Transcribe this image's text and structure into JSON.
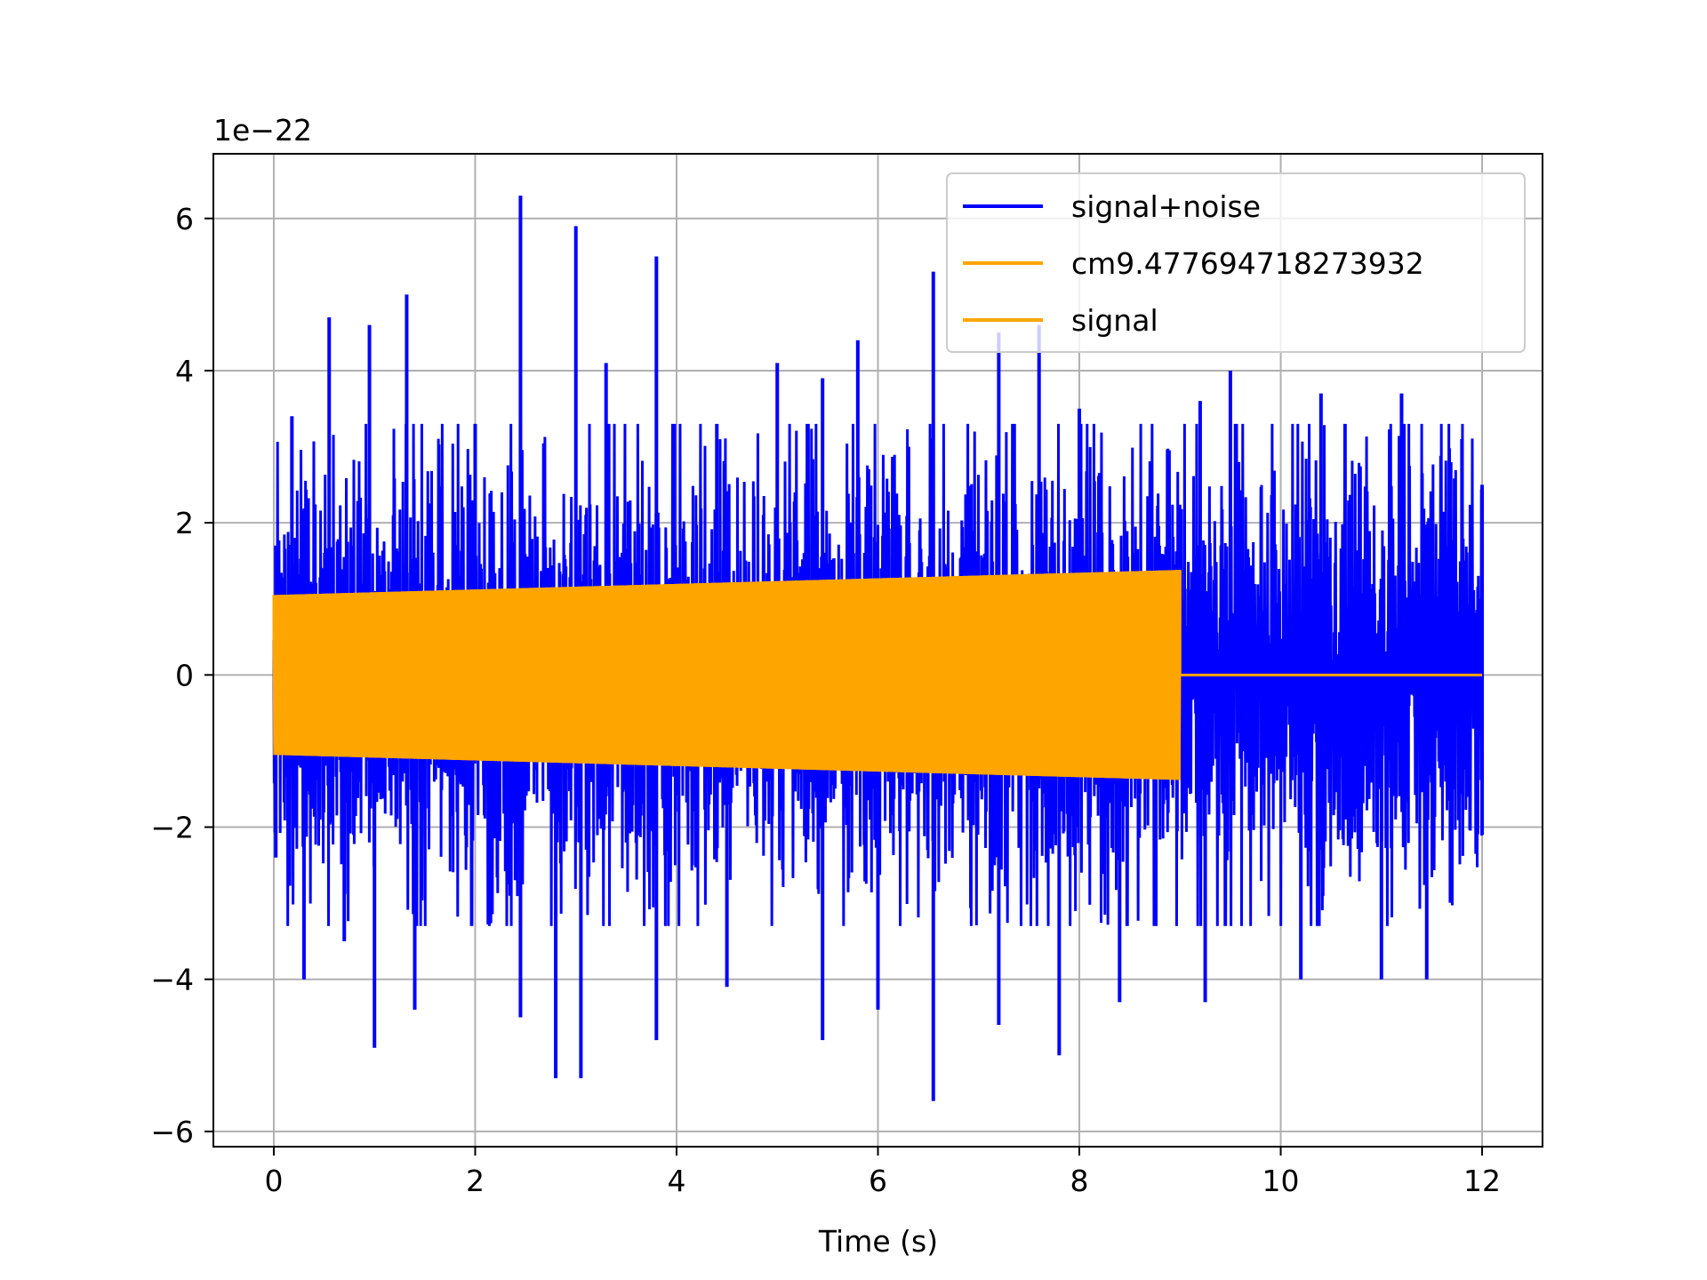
{
  "chart_data": {
    "type": "line",
    "title": "",
    "xlabel": "Time (s)",
    "ylabel": "",
    "y_offset_text": "1e−22",
    "xlim": [
      -0.6,
      12.6
    ],
    "ylim": [
      -6.2,
      6.85
    ],
    "x_ticks": [
      0,
      2,
      4,
      6,
      8,
      10,
      12
    ],
    "x_tick_labels": [
      "0",
      "2",
      "4",
      "6",
      "8",
      "10",
      "12"
    ],
    "y_ticks": [
      -6,
      -4,
      -2,
      0,
      2,
      4,
      6
    ],
    "y_tick_labels": [
      "−6",
      "−4",
      "−2",
      "0",
      "2",
      "4",
      "6"
    ],
    "grid": true,
    "legend_position": "top-right",
    "series": [
      {
        "name": "signal+noise",
        "color": "#0000ff",
        "x_range": [
          0,
          12
        ],
        "kind": "noisy",
        "typical_envelope": 2.4,
        "upper_peaks": [
          [
            0.02,
            1.7
          ],
          [
            0.18,
            3.4
          ],
          [
            0.55,
            4.7
          ],
          [
            0.95,
            4.6
          ],
          [
            1.32,
            5.0
          ],
          [
            2.0,
            3.3
          ],
          [
            2.45,
            6.3
          ],
          [
            3.0,
            5.9
          ],
          [
            3.3,
            4.1
          ],
          [
            3.8,
            5.5
          ],
          [
            4.4,
            3.3
          ],
          [
            5.0,
            4.1
          ],
          [
            5.45,
            3.9
          ],
          [
            5.8,
            4.4
          ],
          [
            6.55,
            5.3
          ],
          [
            7.2,
            4.5
          ],
          [
            7.6,
            4.6
          ],
          [
            8.0,
            3.5
          ],
          [
            9.2,
            3.6
          ],
          [
            9.5,
            4.0
          ],
          [
            10.4,
            3.7
          ],
          [
            11.2,
            3.7
          ],
          [
            11.8,
            3.1
          ],
          [
            12.0,
            2.5
          ]
        ],
        "lower_peaks": [
          [
            0.02,
            -2.4
          ],
          [
            0.3,
            -4.0
          ],
          [
            0.7,
            -3.5
          ],
          [
            1.0,
            -4.9
          ],
          [
            1.4,
            -4.4
          ],
          [
            2.45,
            -4.5
          ],
          [
            2.8,
            -5.3
          ],
          [
            3.05,
            -5.3
          ],
          [
            3.8,
            -4.8
          ],
          [
            4.5,
            -4.1
          ],
          [
            5.45,
            -4.8
          ],
          [
            6.0,
            -4.4
          ],
          [
            6.55,
            -5.6
          ],
          [
            7.2,
            -4.6
          ],
          [
            7.8,
            -5.0
          ],
          [
            8.4,
            -4.3
          ],
          [
            9.25,
            -4.3
          ],
          [
            10.2,
            -4.0
          ],
          [
            11.0,
            -4.0
          ],
          [
            11.45,
            -4.0
          ],
          [
            12.0,
            -2.1
          ]
        ]
      },
      {
        "name": "cm9.477694718273932",
        "color": "#ffa500",
        "x_range": [
          0,
          9
        ],
        "kind": "chirp",
        "amplitude_start": 1.05,
        "amplitude_end": 1.38
      },
      {
        "name": "signal",
        "color": "#ffa500",
        "x_range": [
          0,
          12
        ],
        "kind": "chirp_then_zero",
        "nonzero_until": 9.0,
        "amplitude_start": 1.05,
        "amplitude_end": 1.38,
        "value_after": 0
      }
    ]
  }
}
